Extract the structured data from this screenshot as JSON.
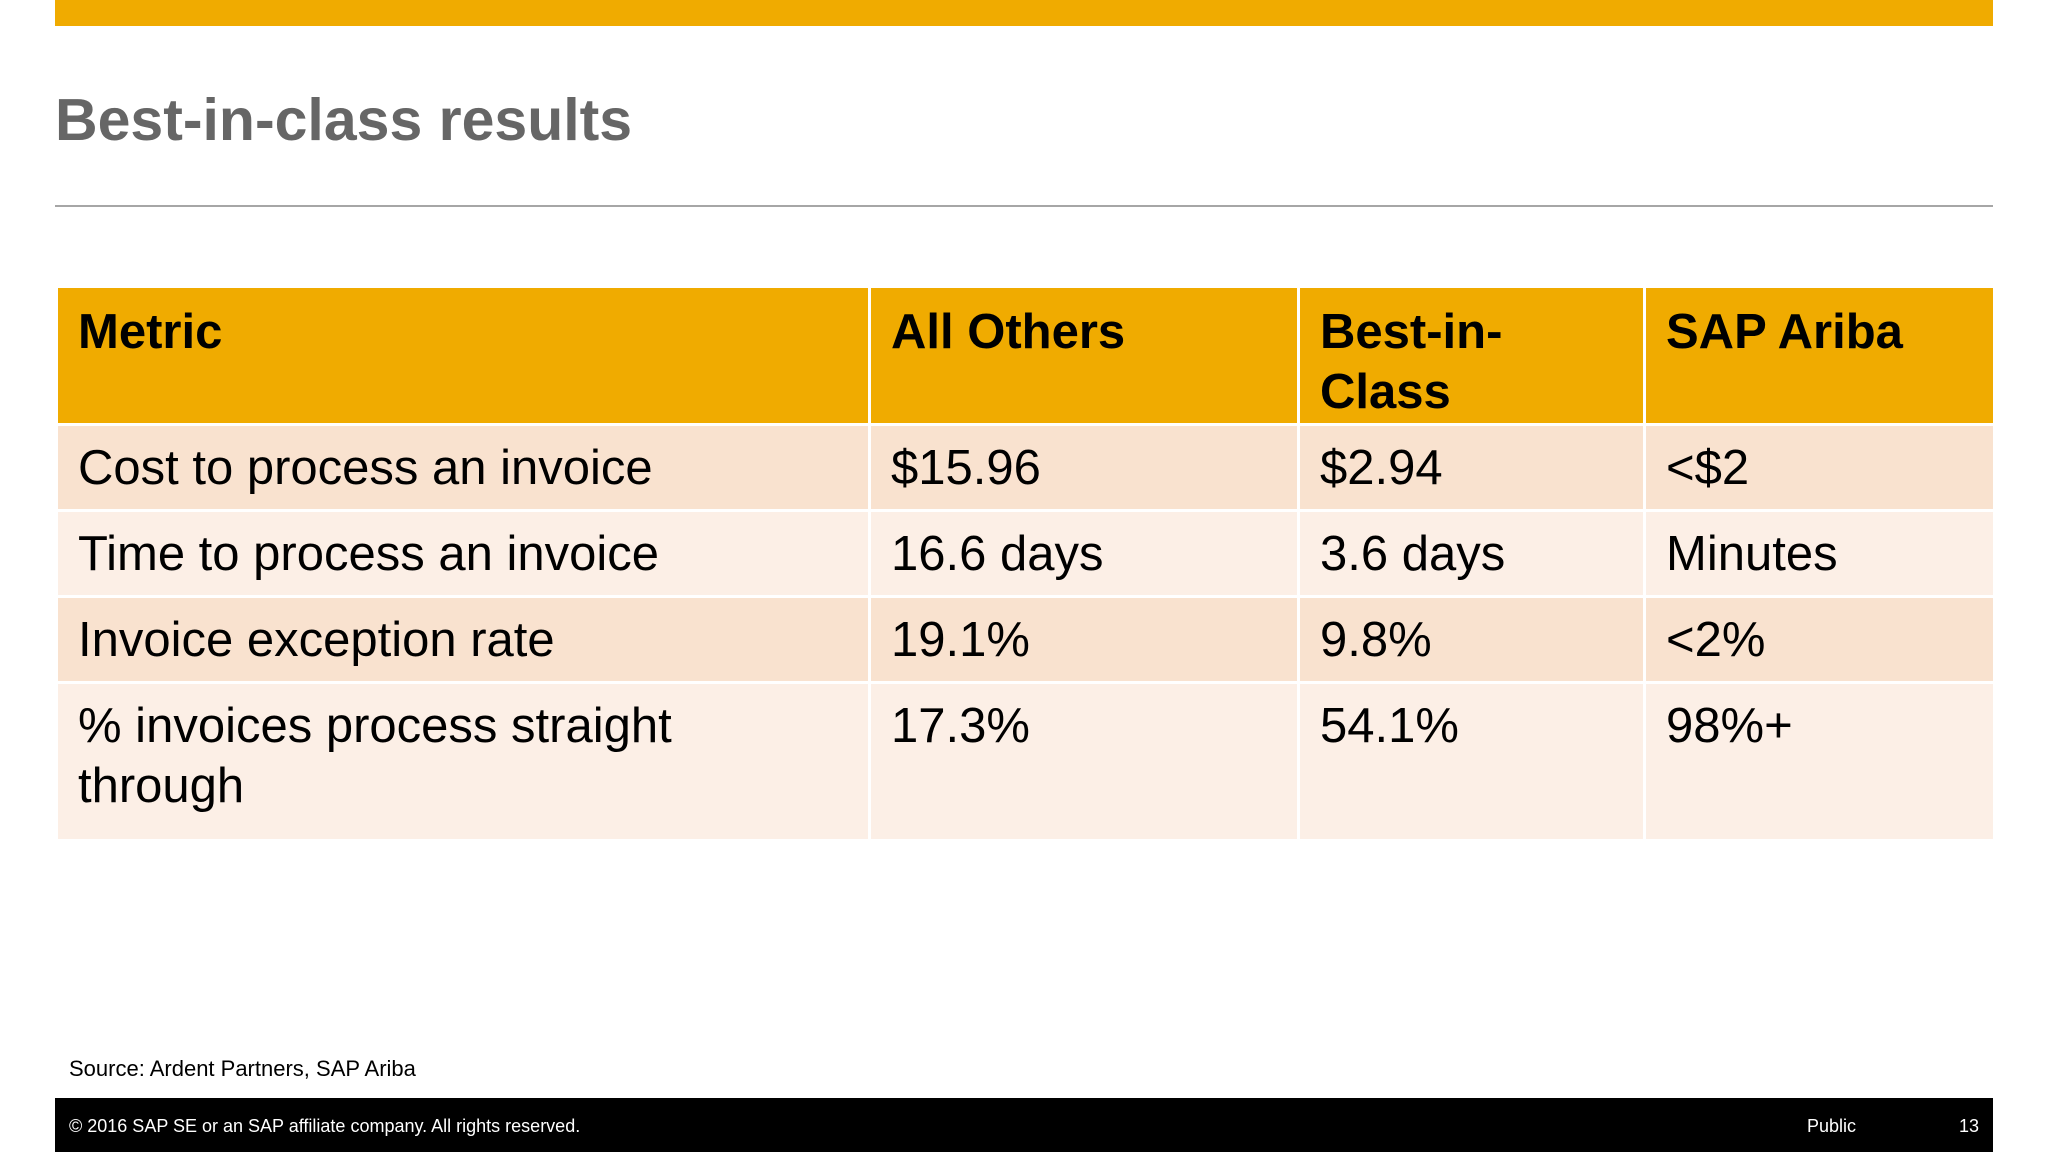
{
  "header": {
    "title": "Best-in-class results"
  },
  "table": {
    "columns": [
      "Metric",
      "All Others",
      "Best-in-Class",
      "SAP Ariba"
    ],
    "rows": [
      [
        "Cost to process an invoice",
        "$15.96",
        "$2.94",
        "<$2"
      ],
      [
        "Time to process an invoice",
        "16.6 days",
        "3.6 days",
        "Minutes"
      ],
      [
        "Invoice exception rate",
        "19.1%",
        "9.8%",
        "<2%"
      ],
      [
        "% invoices process straight through",
        "17.3%",
        "54.1%",
        "98%+"
      ]
    ]
  },
  "source": "Source: Ardent Partners, SAP Ariba",
  "footer": {
    "copyright": "© 2016 SAP SE or an SAP affiliate company. All rights reserved.",
    "classification": "Public",
    "page": 13
  }
}
